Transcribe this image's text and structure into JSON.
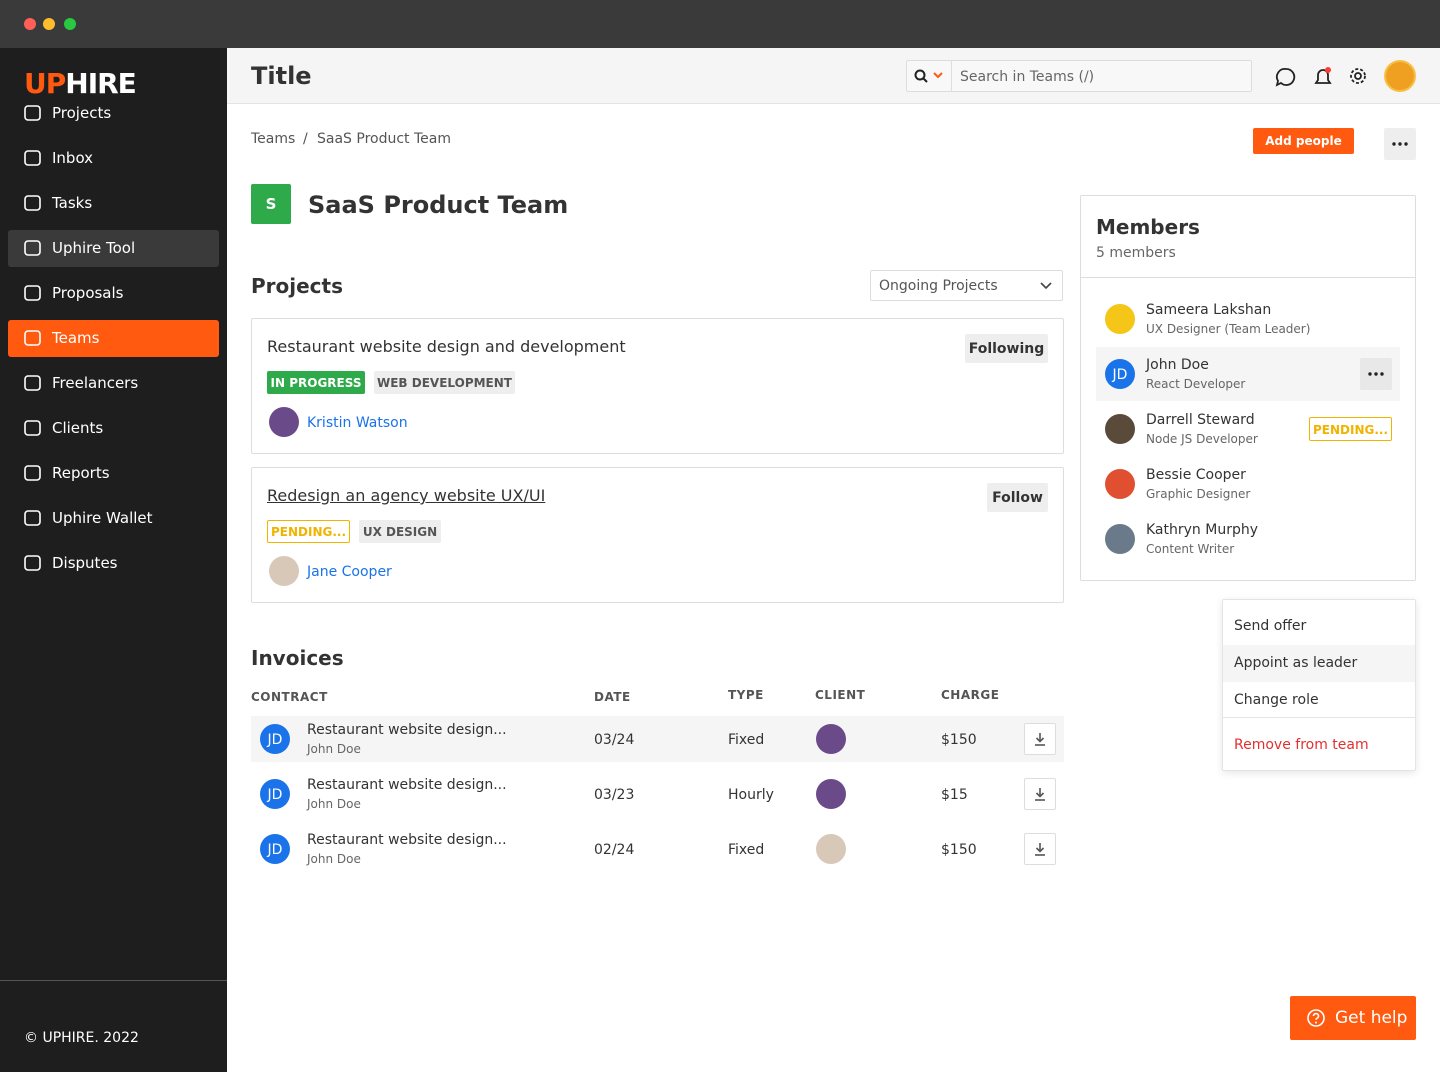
{
  "brand": {
    "logo_accent": "UP",
    "logo_rest": "HIRE"
  },
  "sidebar": {
    "items": [
      "Projects",
      "Inbox",
      "Tasks",
      "Uphire Tool",
      "Proposals",
      "Teams",
      "Freelancers",
      "Clients",
      "Reports",
      "Uphire Wallet",
      "Disputes"
    ],
    "footer": "© UPHIRE. 2022"
  },
  "header": {
    "title": "Title",
    "search_placeholder": "Search in Teams (/)"
  },
  "breadcrumb": {
    "items": [
      "Teams",
      "SaaS Product Team"
    ],
    "separator": "/"
  },
  "add_people": "Add people",
  "team": {
    "initial": "S",
    "name": "SaaS Product Team"
  },
  "projects": {
    "heading": "Projects",
    "filter": "Ongoing Projects",
    "items": [
      {
        "title": "Restaurant website design and development",
        "follow": "Following",
        "tags": [
          "IN PROGRESS",
          "WEB DEVELOPMENT"
        ],
        "person": "Kristin Watson"
      },
      {
        "title": "Redesign an agency website UX/UI",
        "follow": "Follow",
        "tags": [
          "PENDING...",
          "UX DESIGN"
        ],
        "person": "Jane Cooper"
      }
    ]
  },
  "invoices": {
    "heading": "Invoices",
    "columns": [
      "CONTRACT",
      "DATE",
      "TYPE",
      "CLIENT",
      "CHARGE"
    ],
    "rows": [
      {
        "initials": "JD",
        "contract": "Restaurant website design...",
        "person": "John Doe",
        "date": "03/24",
        "type": "Fixed",
        "charge": "$150"
      },
      {
        "initials": "JD",
        "contract": "Restaurant website design...",
        "person": "John Doe",
        "date": "03/23",
        "type": "Hourly",
        "charge": "$15"
      },
      {
        "initials": "JD",
        "contract": "Restaurant website design...",
        "person": "John Doe",
        "date": "02/24",
        "type": "Fixed",
        "charge": "$150"
      }
    ]
  },
  "members": {
    "heading": "Members",
    "count": "5 members",
    "list": [
      {
        "name": "Sameera Lakshan",
        "role": "UX Designer (Team Leader)"
      },
      {
        "name": "John Doe",
        "role": "React Developer",
        "initials": "JD"
      },
      {
        "name": "Darrell Steward",
        "role": "Node JS Developer",
        "badge": "PENDING..."
      },
      {
        "name": "Bessie Cooper",
        "role": "Graphic Designer"
      },
      {
        "name": "Kathryn Murphy",
        "role": "Content Writer"
      }
    ]
  },
  "menu": {
    "items": [
      "Send offer",
      "Appoint as leader",
      "Change role"
    ],
    "danger": "Remove from team"
  },
  "get_help": "Get help"
}
